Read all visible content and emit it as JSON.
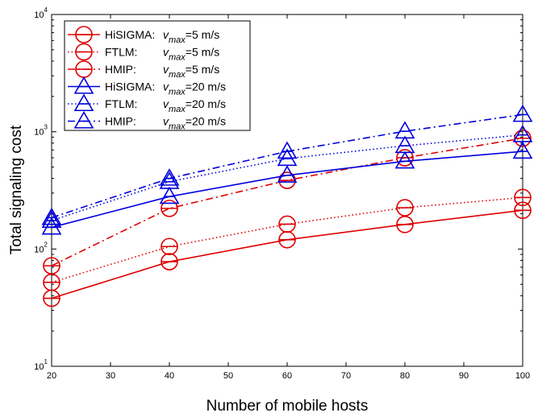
{
  "chart_data": {
    "type": "line",
    "title": "",
    "xlabel": "Number of mobile hosts",
    "ylabel": "Total signaling cost",
    "xlim": [
      20,
      100
    ],
    "ylim": [
      10,
      10000
    ],
    "yscale": "log",
    "grid": false,
    "legend_position": "top-left",
    "x": [
      20,
      40,
      60,
      80,
      100
    ],
    "xticks": [
      "20",
      "30",
      "40",
      "50",
      "60",
      "70",
      "80",
      "90",
      "100"
    ],
    "yticks": [
      {
        "base": "10",
        "exp": "1"
      },
      {
        "base": "10",
        "exp": "2"
      },
      {
        "base": "10",
        "exp": "3"
      },
      {
        "base": "10",
        "exp": "4"
      }
    ],
    "series": [
      {
        "name": "HiSIGMA:",
        "vmax": "5 m/s",
        "color": "#dd0000",
        "marker": "circle",
        "dash": "solid",
        "values": [
          38,
          78,
          120,
          162,
          214
        ]
      },
      {
        "name": "FTLM:",
        "vmax": "5 m/s",
        "color": "#dd0000",
        "marker": "circle",
        "dash": "dotted",
        "values": [
          52,
          105,
          163,
          225,
          275
        ]
      },
      {
        "name": "HMIP:",
        "vmax": "5 m/s",
        "color": "#dd0000",
        "marker": "circle",
        "dash": "dashdot",
        "values": [
          72,
          222,
          385,
          600,
          880
        ]
      },
      {
        "name": "HiSIGMA:",
        "vmax": "20 m/s",
        "color": "#0000dd",
        "marker": "triangle",
        "dash": "solid",
        "values": [
          153,
          280,
          425,
          560,
          680
        ]
      },
      {
        "name": "FTLM:",
        "vmax": "20 m/s",
        "color": "#0000dd",
        "marker": "triangle",
        "dash": "dotted",
        "values": [
          175,
          375,
          590,
          760,
          940
        ]
      },
      {
        "name": "HMIP:",
        "vmax": "20 m/s",
        "color": "#0000dd",
        "marker": "triangle",
        "dash": "dashdot",
        "values": [
          185,
          400,
          680,
          1010,
          1400
        ]
      }
    ]
  }
}
